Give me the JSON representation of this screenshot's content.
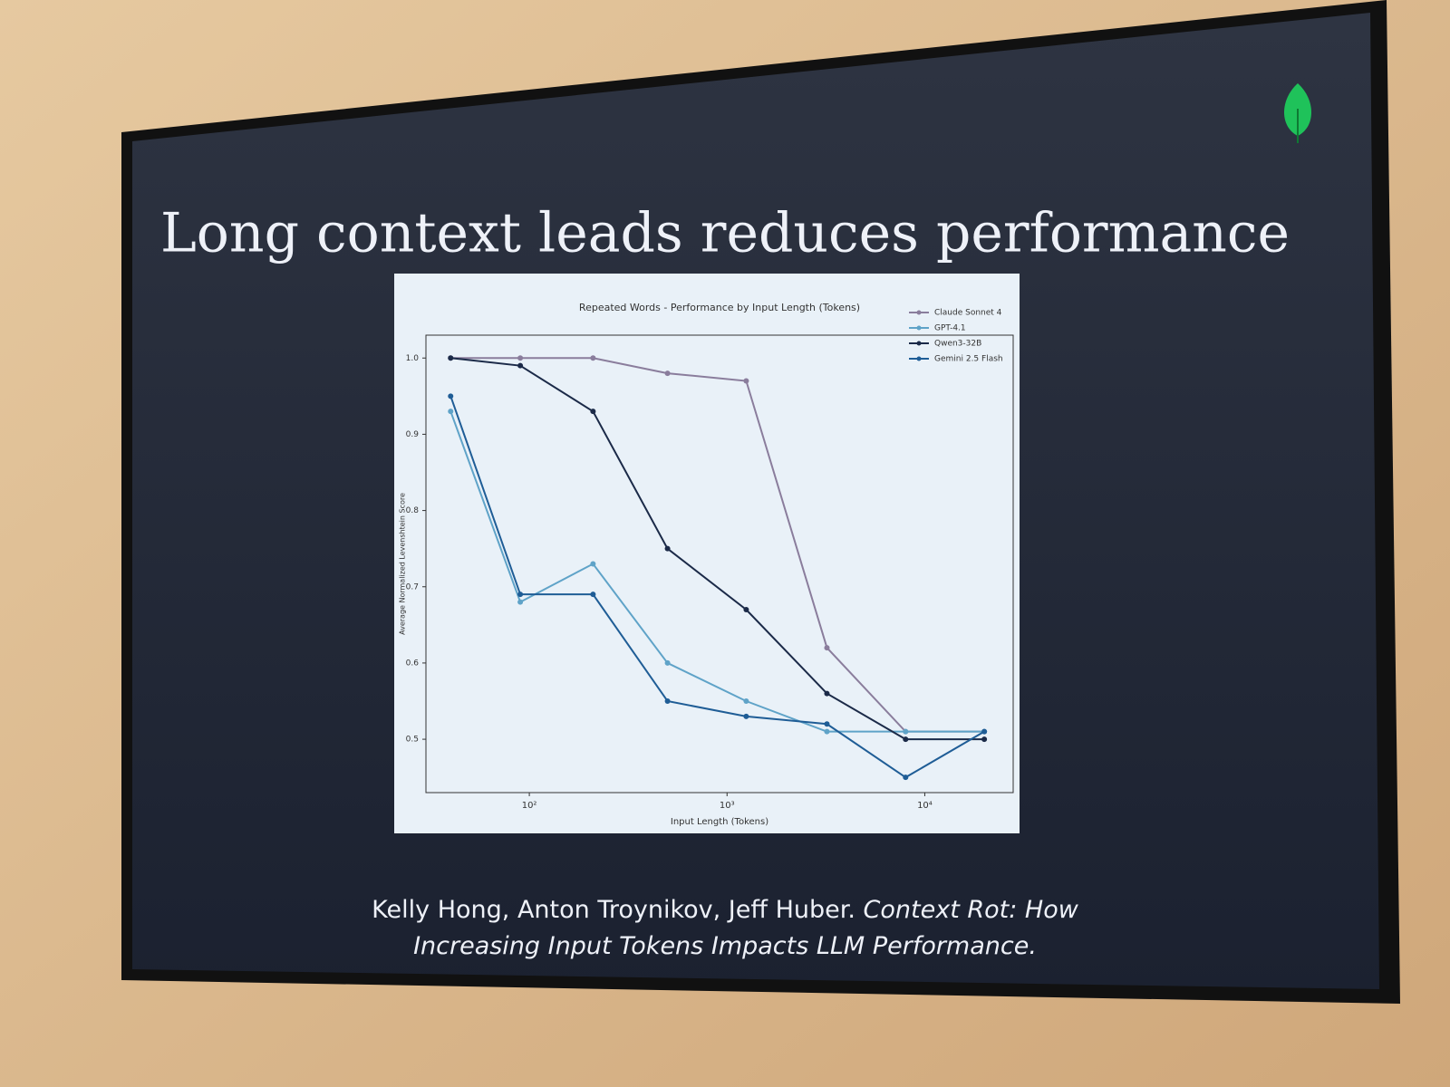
{
  "slide": {
    "title": "Long context leads reduces performance"
  },
  "chart_data": {
    "type": "line",
    "title": "Repeated Words - Performance by Input Length (Tokens)",
    "x_label": "Input Length (Tokens)",
    "y_label": "Average Normalized Levenshtein Score",
    "x": [
      40,
      90,
      210,
      500,
      1250,
      3200,
      8000,
      20000
    ],
    "xscale": "log",
    "xlim": [
      30,
      28000
    ],
    "xticks": [
      {
        "value": 100,
        "label": "10²"
      },
      {
        "value": 1000,
        "label": "10³"
      },
      {
        "value": 10000,
        "label": "10⁴"
      }
    ],
    "ylim": [
      0.43,
      1.03
    ],
    "yticks": [
      0.5,
      0.6,
      0.7,
      0.8,
      0.9,
      {
        "value": 1,
        "label": "1.0"
      }
    ],
    "grid": false,
    "legend": "upper right",
    "series": [
      {
        "name": "Claude Sonnet 4",
        "color": "#8a7d9c",
        "values": [
          1.0,
          1.0,
          1.0,
          0.98,
          0.97,
          0.62,
          0.51,
          0.51
        ]
      },
      {
        "name": "GPT-4.1",
        "color": "#5fa3c8",
        "values": [
          0.93,
          0.68,
          0.73,
          0.6,
          0.55,
          0.51,
          0.51,
          0.51
        ]
      },
      {
        "name": "Qwen3-32B",
        "color": "#1b2a48",
        "values": [
          1.0,
          0.99,
          0.93,
          0.75,
          0.67,
          0.56,
          0.5,
          0.5
        ]
      },
      {
        "name": "Gemini 2.5 Flash",
        "color": "#1f5d96",
        "values": [
          0.95,
          0.69,
          0.69,
          0.55,
          0.53,
          0.52,
          0.45,
          0.51
        ]
      }
    ]
  },
  "citation": {
    "authors": "Kelly Hong, Anton Troynikov, Jeff Huber.",
    "title": "Context Rot: How Increasing Input Tokens Impacts LLM Performance."
  }
}
